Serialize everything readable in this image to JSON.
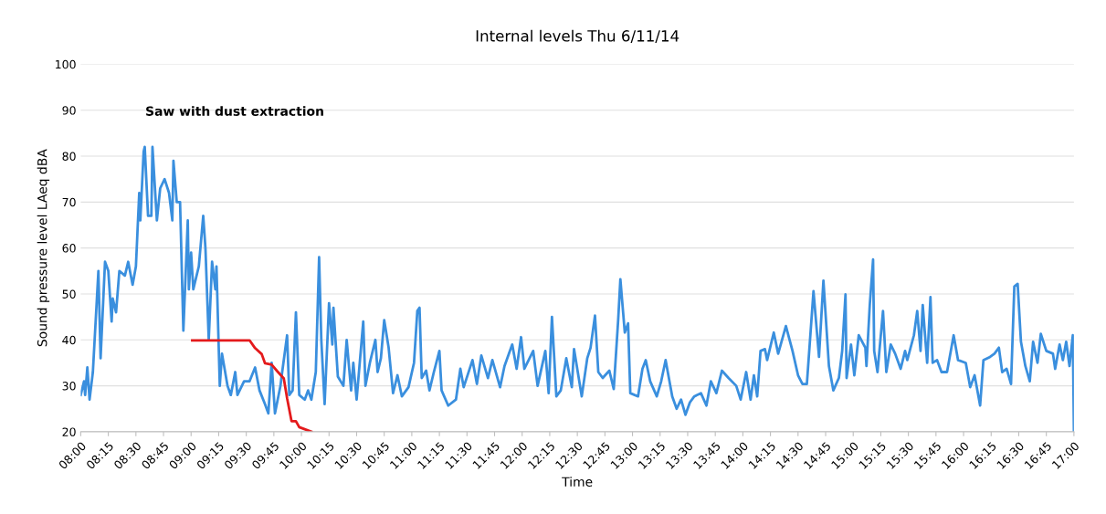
{
  "chart_data": {
    "type": "line",
    "title": "Internal levels Thu 6/11/14",
    "xlabel": "Time",
    "ylabel": "Sound pressure level LAeq dBA",
    "annotations": [
      "Saw with dust extraction"
    ],
    "series": [
      {
        "color": "#3a8fde",
        "x": [
          8.0,
          8.03,
          8.04,
          8.06,
          8.08,
          8.11,
          8.16,
          8.18,
          8.22,
          8.25,
          8.28,
          8.29,
          8.32,
          8.35,
          8.4,
          8.43,
          8.47,
          8.5,
          8.53,
          8.54,
          8.57,
          8.58,
          8.61,
          8.64,
          8.65,
          8.69,
          8.72,
          8.76,
          8.8,
          8.83,
          8.84,
          8.87,
          8.9,
          8.93,
          8.97,
          8.98,
          9.0,
          9.02,
          9.07,
          9.11,
          9.13,
          9.16,
          9.19,
          9.22,
          9.23,
          9.26,
          9.28,
          9.33,
          9.36,
          9.4,
          9.42,
          9.48,
          9.53,
          9.58,
          9.62,
          9.67,
          9.7,
          9.73,
          9.76,
          9.81,
          9.82,
          9.87,
          9.89,
          9.92,
          9.95,
          9.98,
          10.03,
          10.06,
          10.09,
          10.13,
          10.16,
          10.18,
          10.21,
          10.25,
          10.28,
          10.29,
          10.33,
          10.38,
          10.41,
          10.45,
          10.47,
          10.5,
          10.56,
          10.58,
          10.62,
          10.67,
          10.69,
          10.72,
          10.75,
          10.79,
          10.83,
          10.87,
          10.91,
          10.97,
          11.02,
          11.05,
          11.07,
          11.09,
          11.13,
          11.16,
          11.2,
          11.25,
          11.27,
          11.33,
          11.4,
          11.44,
          11.47,
          11.55,
          11.59,
          11.63,
          11.69,
          11.73,
          11.8,
          11.84,
          11.91,
          11.95,
          11.99,
          12.02,
          12.1,
          12.14,
          12.21,
          12.24,
          12.27,
          12.31,
          12.35,
          12.4,
          12.45,
          12.47,
          12.54,
          12.59,
          12.62,
          12.66,
          12.69,
          12.73,
          12.79,
          12.83,
          12.87,
          12.89,
          12.93,
          12.96,
          12.98,
          13.05,
          13.09,
          13.12,
          13.16,
          13.22,
          13.26,
          13.3,
          13.36,
          13.4,
          13.44,
          13.48,
          13.52,
          13.56,
          13.62,
          13.67,
          13.71,
          13.76,
          13.81,
          13.87,
          13.94,
          13.98,
          14.03,
          14.07,
          14.1,
          14.13,
          14.16,
          14.2,
          14.22,
          14.28,
          14.32,
          14.39,
          14.45,
          14.5,
          14.54,
          14.58,
          14.64,
          14.69,
          14.73,
          14.78,
          14.82,
          14.87,
          14.9,
          14.93,
          14.94,
          14.98,
          15.01,
          15.05,
          15.11,
          15.12,
          15.15,
          15.18,
          15.19,
          15.22,
          15.27,
          15.3,
          15.34,
          15.38,
          15.43,
          15.47,
          15.49,
          15.55,
          15.58,
          15.61,
          15.63,
          15.67,
          15.7,
          15.72,
          15.76,
          15.8,
          15.85,
          15.91,
          15.95,
          16.02,
          16.06,
          16.1,
          16.15,
          16.18,
          16.24,
          16.28,
          16.32,
          16.35,
          16.39,
          16.43,
          16.46,
          16.49,
          16.52,
          16.56,
          16.6,
          16.63,
          16.67,
          16.7,
          16.75,
          16.81,
          16.83,
          16.87,
          16.9,
          16.93,
          16.96,
          16.99,
          17.0
        ],
        "values": [
          28,
          31,
          28,
          34,
          27,
          33,
          55,
          36,
          57,
          55,
          44,
          49,
          46,
          55,
          54,
          57,
          52,
          56,
          72,
          66,
          81,
          82,
          67,
          67,
          82,
          66,
          73,
          75,
          72,
          66,
          79,
          70,
          70,
          42,
          66,
          51,
          59,
          51,
          56,
          67,
          60,
          40,
          57,
          51,
          56,
          30,
          37,
          30,
          28,
          33,
          28,
          31,
          31,
          34,
          29,
          26,
          24,
          35,
          24,
          30,
          32,
          41,
          28,
          29,
          46,
          28,
          27,
          29,
          27,
          33,
          58,
          40,
          26,
          48,
          39,
          47,
          32,
          30,
          40,
          29,
          35,
          27,
          44,
          30,
          35,
          40,
          33,
          36,
          44.3,
          38.3,
          28.4,
          32.3,
          27.7,
          29.7,
          35,
          46.3,
          47,
          31.7,
          33.3,
          29,
          33,
          37.6,
          29,
          25.7,
          27,
          33.7,
          29.7,
          35.6,
          30.4,
          36.6,
          31.7,
          35.6,
          29.7,
          34.3,
          39,
          33.7,
          40.6,
          33.7,
          37.6,
          30,
          37.6,
          28.4,
          45,
          27.7,
          29,
          36,
          29.7,
          38,
          27.7,
          36,
          38.3,
          45.3,
          33,
          31.7,
          33.3,
          29.3,
          44.3,
          53.2,
          41.6,
          43.6,
          28.4,
          27.7,
          33.7,
          35.6,
          31,
          27.7,
          31,
          35.6,
          27.7,
          25,
          27,
          23.7,
          26.4,
          27.7,
          28.4,
          25.7,
          31,
          28.4,
          33.3,
          31.7,
          30,
          27,
          33,
          27,
          32.3,
          27.7,
          37.6,
          38,
          35.6,
          41.6,
          37,
          43,
          37.6,
          32.3,
          30.4,
          30.4,
          50.6,
          36.3,
          52.9,
          34.3,
          29,
          31.7,
          37.6,
          49.9,
          31.7,
          39,
          32.3,
          41,
          38.3,
          34.3,
          47.6,
          57.5,
          37.6,
          33,
          46.3,
          33,
          39,
          37,
          33.7,
          37.6,
          35.6,
          41,
          46.3,
          37.6,
          47.6,
          35,
          49.3,
          35,
          35.6,
          33,
          33,
          41,
          35.6,
          35,
          29.7,
          32.3,
          25.7,
          35.6,
          36.3,
          37,
          38.3,
          33,
          33.7,
          30.4,
          51.6,
          52.2,
          39.6,
          34.3,
          31,
          39.6,
          35,
          41.3,
          37.6,
          37,
          33.7,
          39,
          35.6,
          39.6,
          34.3,
          41,
          20
        ]
      },
      {
        "color": "#e41a1c",
        "x": [
          9.01,
          9.53,
          9.58,
          9.64,
          9.67,
          9.73,
          9.78,
          9.84,
          9.87,
          9.91,
          9.95,
          9.98,
          10.09
        ],
        "values": [
          39.9,
          39.9,
          38.2,
          36.9,
          34.9,
          34.6,
          33.2,
          31.6,
          27.3,
          22.3,
          22.3,
          21,
          20
        ]
      }
    ],
    "xlim": [
      8,
      17
    ],
    "xticks": [
      {
        "value": 8,
        "label": "08:00"
      },
      {
        "value": 8.25,
        "label": "08:15"
      },
      {
        "value": 8.5,
        "label": "08:30"
      },
      {
        "value": 8.75,
        "label": "08:45"
      },
      {
        "value": 9,
        "label": "09:00"
      },
      {
        "value": 9.25,
        "label": "09:15"
      },
      {
        "value": 9.5,
        "label": "09:30"
      },
      {
        "value": 9.75,
        "label": "09:45"
      },
      {
        "value": 10,
        "label": "10:00"
      },
      {
        "value": 10.25,
        "label": "10:15"
      },
      {
        "value": 10.5,
        "label": "10:30"
      },
      {
        "value": 10.75,
        "label": "10:45"
      },
      {
        "value": 11,
        "label": "11:00"
      },
      {
        "value": 11.25,
        "label": "11:15"
      },
      {
        "value": 11.5,
        "label": "11:30"
      },
      {
        "value": 11.75,
        "label": "11:45"
      },
      {
        "value": 12,
        "label": "12:00"
      },
      {
        "value": 12.25,
        "label": "12:15"
      },
      {
        "value": 12.5,
        "label": "12:30"
      },
      {
        "value": 12.75,
        "label": "12:45"
      },
      {
        "value": 13,
        "label": "13:00"
      },
      {
        "value": 13.25,
        "label": "13:15"
      },
      {
        "value": 13.5,
        "label": "13:30"
      },
      {
        "value": 13.75,
        "label": "13:45"
      },
      {
        "value": 14,
        "label": "14:00"
      },
      {
        "value": 14.25,
        "label": "14:15"
      },
      {
        "value": 14.5,
        "label": "14:30"
      },
      {
        "value": 14.75,
        "label": "14:45"
      },
      {
        "value": 15,
        "label": "15:00"
      },
      {
        "value": 15.25,
        "label": "15:15"
      },
      {
        "value": 15.5,
        "label": "15:30"
      },
      {
        "value": 15.75,
        "label": "15:45"
      },
      {
        "value": 16,
        "label": "16:00"
      },
      {
        "value": 16.25,
        "label": "16:15"
      },
      {
        "value": 16.5,
        "label": "16:30"
      },
      {
        "value": 16.75,
        "label": "16:45"
      },
      {
        "value": 17,
        "label": "17:00"
      }
    ],
    "ylim": [
      20,
      100
    ],
    "yticks": [
      20,
      30,
      40,
      50,
      60,
      70,
      80,
      90,
      100
    ],
    "grid": "y",
    "marker": "none",
    "line_style": "solid"
  }
}
